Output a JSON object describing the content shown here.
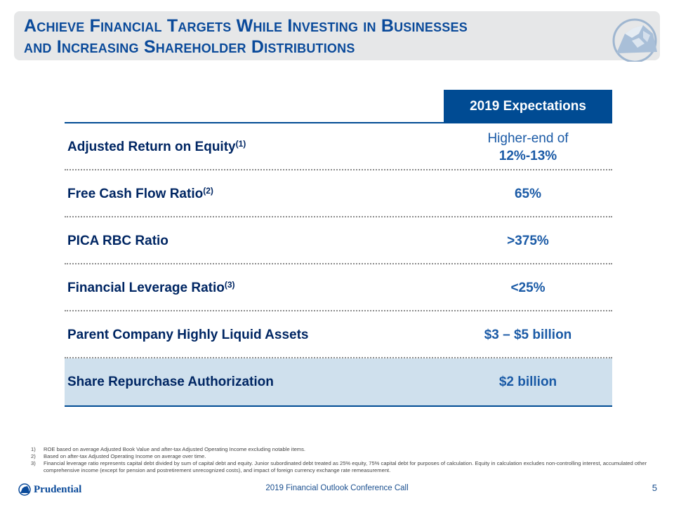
{
  "title": {
    "line1": "Achieve Financial Targets While Investing in Businesses",
    "line2": "and Increasing Shareholder Distributions"
  },
  "logo_icon": "rock-of-gibraltar-icon",
  "table": {
    "header": "2019 Expectations",
    "rows": [
      {
        "label": "Adjusted Return on Equity",
        "note": "(1)",
        "value_line1": "Higher-end of",
        "value_line2": "12%-13%"
      },
      {
        "label": "Free Cash Flow Ratio",
        "note": "(2)",
        "value": "65%"
      },
      {
        "label": "PICA RBC Ratio",
        "note": "",
        "value": ">375%"
      },
      {
        "label": "Financial Leverage Ratio",
        "note": "(3)",
        "value": "<25%"
      },
      {
        "label": "Parent Company Highly Liquid Assets",
        "note": "",
        "value": "$3 – $5 billion"
      },
      {
        "label": "Share Repurchase Authorization",
        "note": "",
        "value": "$2 billion"
      }
    ],
    "highlight_color": "#cfe0ed",
    "header_color": "#004b93"
  },
  "footnotes": [
    {
      "num": "1)",
      "text": "ROE based on average Adjusted Book Value and after-tax Adjusted Operating Income excluding notable items."
    },
    {
      "num": "2)",
      "text": "Based on after-tax Adjusted Operating Income on average over time."
    },
    {
      "num": "3)",
      "text": "Financial leverage ratio represents capital debt divided by sum of capital debt and equity. Junior subordinated debt treated as 25% equity, 75% capital debt for purposes of calculation. Equity in calculation excludes non-controlling interest, accumulated other comprehensive income (except for pension and postretirement unrecognized costs), and impact of foreign currency exchange rate remeasurement."
    }
  ],
  "footer": {
    "brand": "Prudential",
    "center": "2019 Financial Outlook Conference Call",
    "page": "5"
  }
}
